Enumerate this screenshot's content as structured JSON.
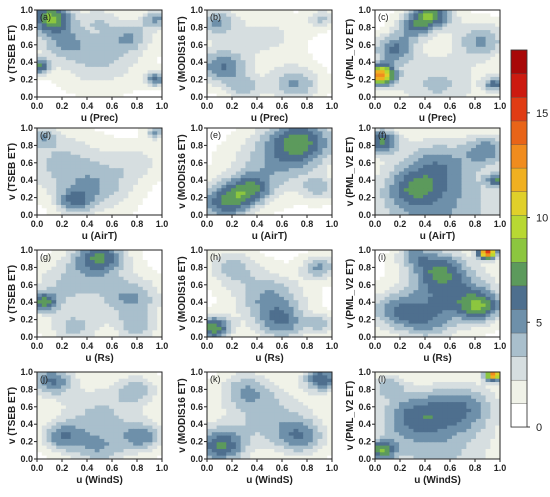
{
  "chart_data": {
    "type": "heatmap",
    "x_ticks": [
      "0.0",
      "0.2",
      "0.4",
      "0.6",
      "0.8",
      "1.0"
    ],
    "y_ticks": [
      "0.0",
      "0.2",
      "0.4",
      "0.6",
      "0.8",
      "1.0"
    ],
    "xlim": [
      0,
      1
    ],
    "ylim": [
      0,
      1
    ],
    "colorbar": {
      "ticks": [
        "0",
        "5",
        "10",
        "15"
      ],
      "range": [
        0,
        18
      ],
      "levels": [
        "#ffffff",
        "#f0f2e8",
        "#d6dee0",
        "#a9bfcc",
        "#6e90aa",
        "#4e6f8e",
        "#5c9a5c",
        "#8cc63f",
        "#b8d832",
        "#e0d02a",
        "#f0b020",
        "#f08c1e",
        "#e86418",
        "#e03c14",
        "#cc1a10",
        "#a80808"
      ]
    },
    "panels": [
      {
        "tag": "(a)",
        "xlabel": "u (Prec)",
        "ylabel": "v (TSEB ET)",
        "blobs": [
          [
            0.1,
            0.92,
            0.12,
            7
          ],
          [
            0.02,
            0.35,
            0.06,
            6
          ],
          [
            0.95,
            0.9,
            0.08,
            4
          ],
          [
            0.5,
            0.45,
            0.25,
            3
          ],
          [
            0.2,
            0.65,
            0.15,
            3
          ],
          [
            0.75,
            0.7,
            0.12,
            3
          ],
          [
            0.95,
            0.2,
            0.06,
            5
          ],
          [
            0.5,
            0.9,
            0.1,
            2
          ]
        ]
      },
      {
        "tag": "(b)",
        "xlabel": "u (Prec)",
        "ylabel": "v (MODIS16 ET)",
        "blobs": [
          [
            0.12,
            0.35,
            0.15,
            5
          ],
          [
            0.08,
            0.85,
            0.12,
            4
          ],
          [
            0.7,
            0.15,
            0.15,
            4
          ],
          [
            0.92,
            0.9,
            0.08,
            3
          ],
          [
            0.5,
            0.7,
            0.2,
            2
          ],
          [
            0.3,
            0.1,
            0.1,
            3
          ]
        ]
      },
      {
        "tag": "(c)",
        "xlabel": "u (Prec)",
        "ylabel": "v (PML_V2 ET)",
        "blobs": [
          [
            0.04,
            0.25,
            0.08,
            12
          ],
          [
            0.45,
            0.95,
            0.12,
            7
          ],
          [
            0.85,
            0.65,
            0.15,
            4
          ],
          [
            0.15,
            0.55,
            0.12,
            5
          ],
          [
            0.5,
            0.15,
            0.25,
            3
          ],
          [
            0.96,
            0.15,
            0.06,
            5
          ],
          [
            0.3,
            0.8,
            0.1,
            4
          ]
        ]
      },
      {
        "tag": "(d)",
        "xlabel": "u (AirT)",
        "ylabel": "v (TSEB ET)",
        "blobs": [
          [
            0.2,
            0.6,
            0.25,
            3
          ],
          [
            0.5,
            0.3,
            0.2,
            3
          ],
          [
            0.3,
            0.15,
            0.1,
            4
          ],
          [
            0.8,
            0.6,
            0.15,
            2
          ],
          [
            0.95,
            0.95,
            0.06,
            4
          ],
          [
            0.05,
            0.9,
            0.08,
            3
          ]
        ]
      },
      {
        "tag": "(e)",
        "xlabel": "u (AirT)",
        "ylabel": "v (MODIS16 ET)",
        "blobs": [
          [
            0.15,
            0.15,
            0.15,
            6
          ],
          [
            0.75,
            0.85,
            0.2,
            6
          ],
          [
            0.5,
            0.55,
            0.25,
            3
          ],
          [
            0.9,
            0.3,
            0.1,
            3
          ],
          [
            0.35,
            0.3,
            0.12,
            4
          ]
        ]
      },
      {
        "tag": "(f)",
        "xlabel": "u (AirT)",
        "ylabel": "v (PML_V2 ET)",
        "blobs": [
          [
            0.05,
            0.85,
            0.1,
            6
          ],
          [
            0.5,
            0.1,
            0.4,
            4
          ],
          [
            0.5,
            0.6,
            0.2,
            3
          ],
          [
            0.9,
            0.75,
            0.12,
            4
          ],
          [
            0.3,
            0.3,
            0.15,
            3
          ],
          [
            0.97,
            0.4,
            0.05,
            5
          ]
        ]
      },
      {
        "tag": "(g)",
        "xlabel": "u (Rs)",
        "ylabel": "v (TSEB ET)",
        "blobs": [
          [
            0.5,
            0.92,
            0.15,
            6
          ],
          [
            0.05,
            0.4,
            0.08,
            6
          ],
          [
            0.25,
            0.6,
            0.2,
            3
          ],
          [
            0.75,
            0.45,
            0.18,
            4
          ],
          [
            0.3,
            0.1,
            0.15,
            3
          ],
          [
            0.8,
            0.1,
            0.12,
            3
          ]
        ]
      },
      {
        "tag": "(h)",
        "xlabel": "u (Rs)",
        "ylabel": "v (MODIS16 ET)",
        "blobs": [
          [
            0.05,
            0.1,
            0.1,
            7
          ],
          [
            0.5,
            0.45,
            0.2,
            4
          ],
          [
            0.6,
            0.15,
            0.15,
            4
          ],
          [
            0.2,
            0.8,
            0.15,
            3
          ],
          [
            0.9,
            0.8,
            0.1,
            4
          ],
          [
            0.92,
            0.15,
            0.08,
            3
          ]
        ]
      },
      {
        "tag": "(i)",
        "xlabel": "u (Rs)",
        "ylabel": "v (PML_V2 ET)",
        "blobs": [
          [
            0.9,
            0.97,
            0.05,
            14
          ],
          [
            0.6,
            0.5,
            0.25,
            5
          ],
          [
            0.15,
            0.3,
            0.15,
            4
          ],
          [
            0.85,
            0.35,
            0.12,
            5
          ],
          [
            0.5,
            0.8,
            0.15,
            4
          ],
          [
            0.3,
            0.95,
            0.1,
            3
          ],
          [
            0.4,
            0.15,
            0.15,
            3
          ]
        ]
      },
      {
        "tag": "(j)",
        "xlabel": "u (WindS)",
        "ylabel": "v (TSEB ET)",
        "blobs": [
          [
            0.12,
            0.9,
            0.12,
            5
          ],
          [
            0.5,
            0.5,
            0.25,
            3
          ],
          [
            0.2,
            0.25,
            0.12,
            4
          ],
          [
            0.85,
            0.25,
            0.12,
            4
          ],
          [
            0.5,
            0.1,
            0.15,
            3
          ],
          [
            0.8,
            0.8,
            0.12,
            3
          ]
        ]
      },
      {
        "tag": "(k)",
        "xlabel": "u (WindS)",
        "ylabel": "v (MODIS16 ET)",
        "blobs": [
          [
            0.1,
            0.15,
            0.15,
            6
          ],
          [
            0.92,
            0.92,
            0.1,
            6
          ],
          [
            0.5,
            0.5,
            0.25,
            3
          ],
          [
            0.3,
            0.8,
            0.15,
            3
          ],
          [
            0.75,
            0.25,
            0.15,
            4
          ]
        ]
      },
      {
        "tag": "(l)",
        "xlabel": "u (WindS)",
        "ylabel": "v (PML_V2 ET)",
        "blobs": [
          [
            0.95,
            0.97,
            0.05,
            12
          ],
          [
            0.3,
            0.5,
            0.2,
            4
          ],
          [
            0.7,
            0.6,
            0.2,
            4
          ],
          [
            0.5,
            0.1,
            0.35,
            3
          ],
          [
            0.05,
            0.1,
            0.08,
            6
          ],
          [
            0.1,
            0.85,
            0.1,
            3
          ]
        ]
      }
    ]
  }
}
